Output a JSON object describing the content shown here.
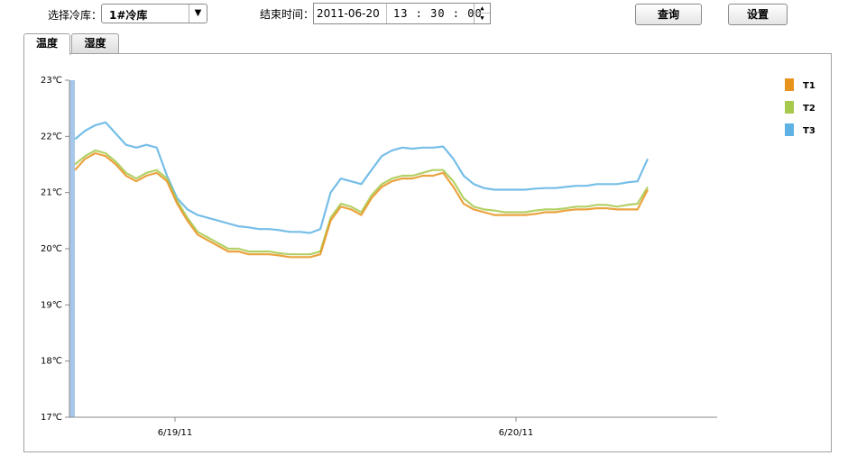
{
  "toolbar": {
    "select_label": "选择冷库：",
    "select_value": "1#冷库",
    "end_time_label": "结束时间：",
    "date": "2011-06-20",
    "time": "13 : 30 : 00",
    "query_button": "查询",
    "settings_button": "设置"
  },
  "tabs": [
    {
      "label": "温度",
      "active": true
    },
    {
      "label": "湿度",
      "active": false
    }
  ],
  "colors": {
    "T1": "#e8931e",
    "T2": "#a6c94c",
    "T3": "#5eb3e4",
    "left_band": "#a7c7ea"
  },
  "chart_data": {
    "type": "line",
    "ylim": [
      17,
      23
    ],
    "yticks": [
      "23℃",
      "22℃",
      "21℃",
      "20℃",
      "19℃",
      "18℃",
      "17℃"
    ],
    "xticks": [
      "6/19/11",
      "6/20/11"
    ],
    "legend_position": "right",
    "grid": false,
    "series": [
      {
        "name": "T1",
        "values": [
          21.4,
          21.6,
          21.7,
          21.65,
          21.5,
          21.3,
          21.2,
          21.3,
          21.35,
          21.2,
          20.8,
          20.5,
          20.25,
          20.15,
          20.05,
          19.95,
          19.95,
          19.9,
          19.9,
          19.9,
          19.88,
          19.85,
          19.85,
          19.85,
          19.9,
          20.5,
          20.75,
          20.7,
          20.6,
          20.9,
          21.1,
          21.2,
          21.25,
          21.25,
          21.3,
          21.3,
          21.35,
          21.1,
          20.8,
          20.7,
          20.65,
          20.6,
          20.6,
          20.6,
          20.6,
          20.62,
          20.65,
          20.65,
          20.68,
          20.7,
          20.7,
          20.72,
          20.72,
          20.7,
          20.7,
          20.7,
          21.05
        ]
      },
      {
        "name": "T2",
        "values": [
          21.5,
          21.65,
          21.75,
          21.7,
          21.55,
          21.35,
          21.25,
          21.35,
          21.4,
          21.25,
          20.85,
          20.55,
          20.3,
          20.2,
          20.1,
          20.0,
          20.0,
          19.95,
          19.95,
          19.95,
          19.92,
          19.9,
          19.9,
          19.9,
          19.95,
          20.55,
          20.8,
          20.75,
          20.65,
          20.95,
          21.15,
          21.25,
          21.3,
          21.3,
          21.35,
          21.4,
          21.4,
          21.2,
          20.9,
          20.75,
          20.7,
          20.68,
          20.65,
          20.65,
          20.65,
          20.68,
          20.7,
          20.7,
          20.72,
          20.75,
          20.75,
          20.78,
          20.78,
          20.75,
          20.78,
          20.8,
          21.1
        ]
      },
      {
        "name": "T3",
        "values": [
          21.95,
          22.1,
          22.2,
          22.25,
          22.05,
          21.85,
          21.8,
          21.85,
          21.8,
          21.3,
          20.9,
          20.7,
          20.6,
          20.55,
          20.5,
          20.45,
          20.4,
          20.38,
          20.35,
          20.35,
          20.33,
          20.3,
          20.3,
          20.28,
          20.35,
          21.0,
          21.25,
          21.2,
          21.15,
          21.4,
          21.65,
          21.75,
          21.8,
          21.78,
          21.8,
          21.8,
          21.82,
          21.6,
          21.3,
          21.15,
          21.08,
          21.05,
          21.05,
          21.05,
          21.05,
          21.07,
          21.08,
          21.08,
          21.1,
          21.12,
          21.12,
          21.15,
          21.15,
          21.15,
          21.18,
          21.2,
          21.6
        ]
      }
    ]
  }
}
